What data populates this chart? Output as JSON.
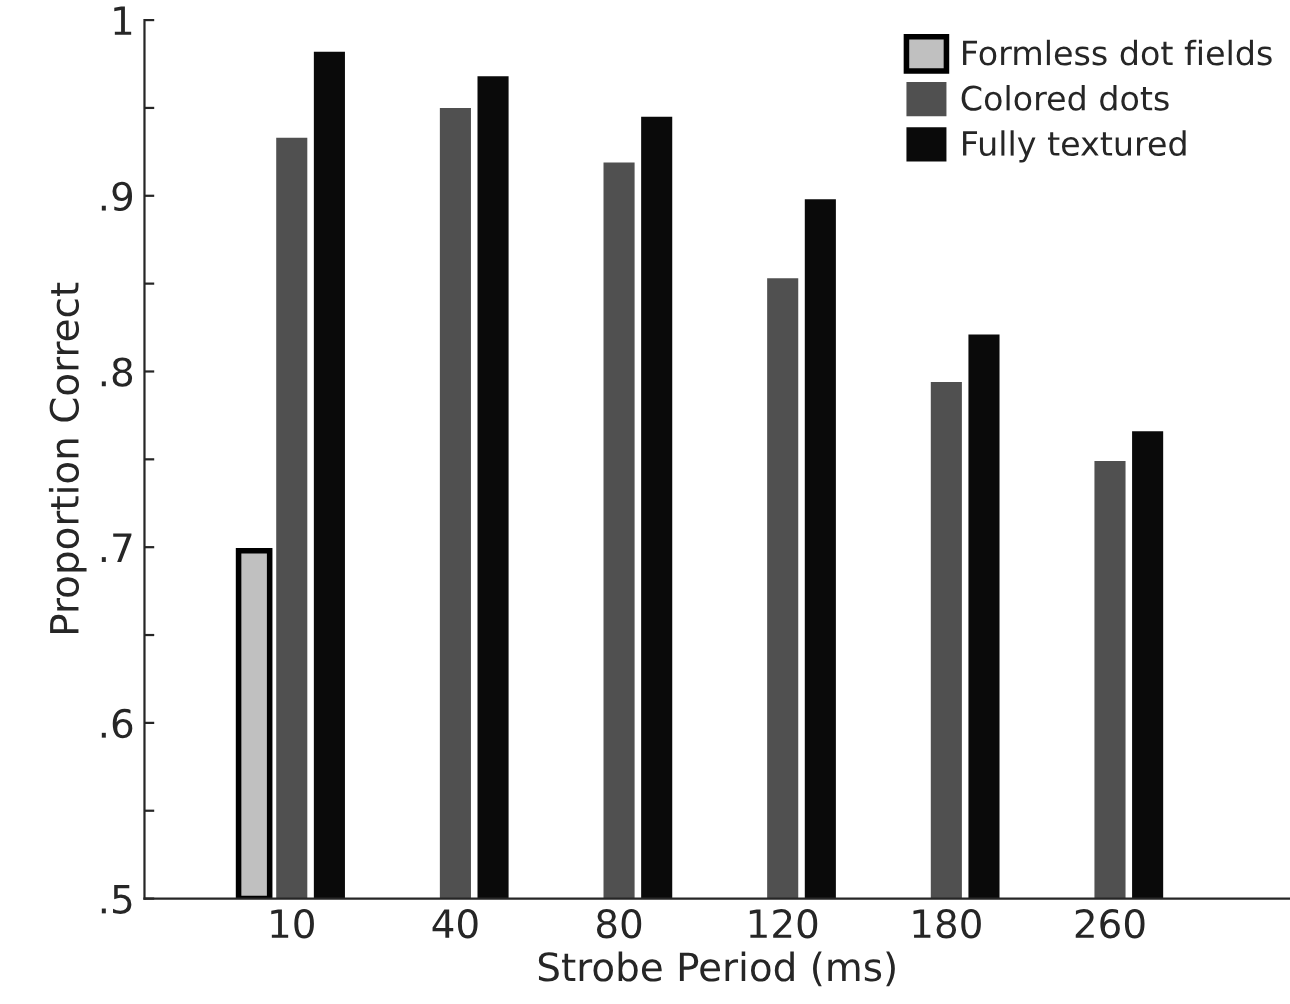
{
  "chart_data": {
    "type": "bar",
    "xlabel": "Strobe Period (ms)",
    "ylabel": "Proportion Correct",
    "categories": [
      "10",
      "40",
      "80",
      "120",
      "180",
      "260"
    ],
    "series": [
      {
        "name": "Formless dot fields",
        "color": "#c0c0c0",
        "values": [
          0.698,
          null,
          null,
          null,
          null,
          null
        ]
      },
      {
        "name": "Colored dots",
        "color": "#505050",
        "values": [
          0.933,
          0.95,
          0.919,
          0.853,
          0.794,
          0.749
        ]
      },
      {
        "name": "Fully textured",
        "color": "#0a0a0a",
        "values": [
          0.982,
          0.968,
          0.945,
          0.898,
          0.821,
          0.766
        ]
      }
    ],
    "ylim": [
      0.5,
      1
    ],
    "yticks": [
      {
        "value": 0.5,
        "label": ".5"
      },
      {
        "value": 0.55,
        "label": null
      },
      {
        "value": 0.6,
        "label": ".6"
      },
      {
        "value": 0.65,
        "label": null
      },
      {
        "value": 0.7,
        "label": ".7"
      },
      {
        "value": 0.75,
        "label": null
      },
      {
        "value": 0.8,
        "label": ".8"
      },
      {
        "value": 0.85,
        "label": null
      },
      {
        "value": 0.9,
        "label": ".9"
      },
      {
        "value": 0.95,
        "label": null
      },
      {
        "value": 1,
        "label": "1"
      }
    ],
    "grid": false,
    "legend": "top right"
  }
}
